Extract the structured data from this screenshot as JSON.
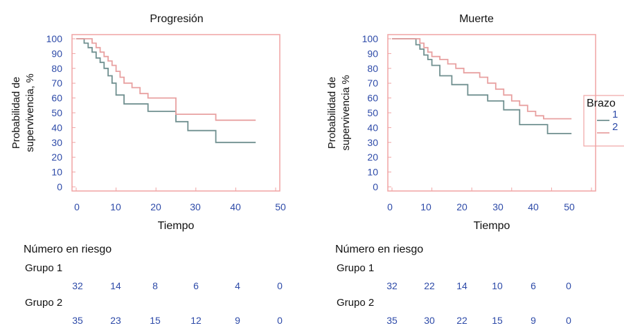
{
  "colors": {
    "frame": "#f0a3a3",
    "arm1": "#6f8f8f",
    "arm2": "#e8a0a0",
    "tick_text": "#2d4aa8"
  },
  "legend": {
    "title": "Brazo",
    "items": [
      "1",
      "2"
    ]
  },
  "chart_data": [
    {
      "type": "line",
      "subtype": "kaplan-meier step",
      "title": "Progresión",
      "xlabel": "Tiempo",
      "ylabel": [
        "Probabilidad de",
        "supervivencia, %"
      ],
      "xlim": [
        0,
        50
      ],
      "ylim": [
        0,
        100
      ],
      "xticks": [
        "0",
        "10",
        "20",
        "30",
        "40",
        "50"
      ],
      "yticks": [
        "0",
        "10",
        "20",
        "30",
        "40",
        "50",
        "60",
        "70",
        "80",
        "90",
        "100"
      ],
      "series": [
        {
          "name": "1",
          "x": [
            0,
            2,
            3,
            4,
            5,
            6,
            7,
            8,
            9,
            10,
            12,
            18,
            25,
            28,
            35,
            45
          ],
          "y": [
            100,
            97,
            94,
            91,
            87,
            84,
            80,
            75,
            70,
            62,
            56,
            51,
            44,
            38,
            30,
            30
          ]
        },
        {
          "name": "2",
          "x": [
            0,
            4,
            5,
            6,
            7,
            8,
            9,
            10,
            11,
            12,
            14,
            16,
            18,
            25,
            35,
            45
          ],
          "y": [
            100,
            97,
            94,
            91,
            88,
            85,
            82,
            78,
            74,
            70,
            67,
            63,
            60,
            49,
            45,
            45
          ]
        }
      ],
      "risk_table": {
        "header": "Número en riesgo",
        "groups": [
          {
            "label": "Grupo 1",
            "values": [
              "32",
              "14",
              "8",
              "6",
              "4",
              "0"
            ]
          },
          {
            "label": "Grupo 2",
            "values": [
              "35",
              "23",
              "15",
              "12",
              "9",
              "0"
            ]
          }
        ]
      }
    },
    {
      "type": "line",
      "subtype": "kaplan-meier step",
      "title": "Muerte",
      "xlabel": "Tiempo",
      "ylabel": [
        "Probabilidad de",
        "supervivencia %"
      ],
      "xlim": [
        0,
        50
      ],
      "ylim": [
        0,
        100
      ],
      "xticks": [
        "0",
        "10",
        "20",
        "30",
        "40",
        "50"
      ],
      "yticks": [
        "0",
        "10",
        "20",
        "30",
        "40",
        "50",
        "60",
        "70",
        "80",
        "90",
        "100"
      ],
      "series": [
        {
          "name": "1",
          "x": [
            0,
            6,
            7,
            8,
            9,
            10,
            12,
            15,
            19,
            24,
            28,
            32,
            39,
            45
          ],
          "y": [
            100,
            96,
            93,
            89,
            86,
            82,
            75,
            69,
            62,
            58,
            52,
            42,
            36,
            36
          ]
        },
        {
          "name": "2",
          "x": [
            0,
            7,
            8,
            9,
            10,
            12,
            14,
            16,
            18,
            22,
            24,
            26,
            28,
            30,
            32,
            34,
            36,
            38,
            45
          ],
          "y": [
            100,
            97,
            94,
            91,
            88,
            86,
            83,
            80,
            77,
            74,
            70,
            66,
            62,
            58,
            55,
            51,
            48,
            46,
            46
          ]
        }
      ],
      "risk_table": {
        "header": "Número en riesgo",
        "groups": [
          {
            "label": "Grupo 1",
            "values": [
              "32",
              "22",
              "14",
              "10",
              "6",
              "0"
            ]
          },
          {
            "label": "Grupo 2",
            "values": [
              "35",
              "30",
              "22",
              "15",
              "9",
              "0"
            ]
          }
        ]
      }
    }
  ]
}
